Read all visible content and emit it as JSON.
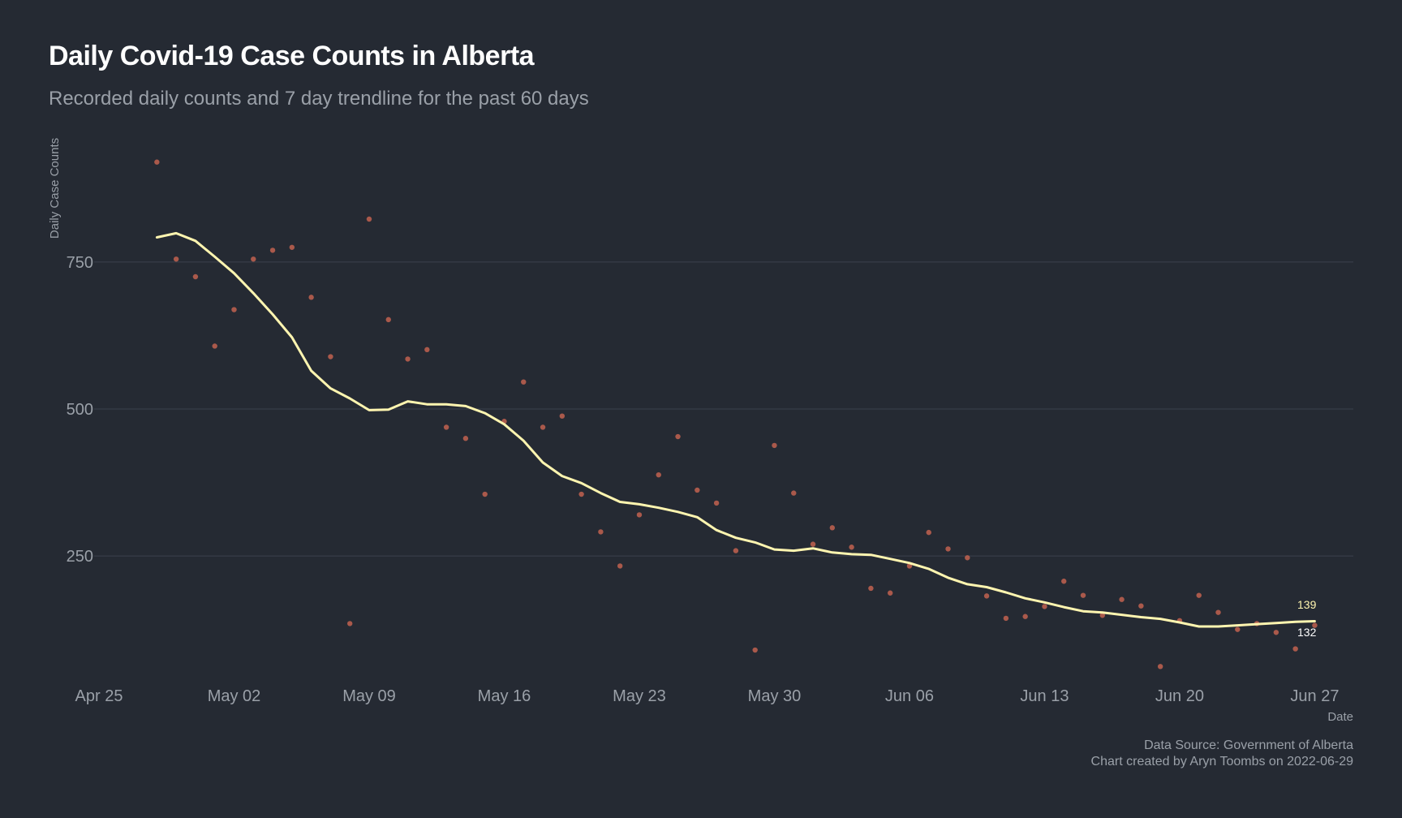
{
  "title": "Daily Covid-19 Case Counts in Alberta",
  "subtitle": "Recorded daily counts and 7 day trendline for the past 60 days",
  "caption": {
    "source": "Data Source: Government of Alberta",
    "credit": "Chart created by Aryn Toombs on 2022-06-29"
  },
  "colors": {
    "background": "#252a33",
    "trend_line": "#fff5b0",
    "points": "#c26150",
    "grid": "#3c424d",
    "muted_text": "#9aa0a8"
  },
  "chart_data": {
    "type": "scatter",
    "title": "Daily Covid-19 Case Counts in Alberta",
    "subtitle": "Recorded daily counts and 7 day trendline for the past 60 days",
    "xlabel": "Date",
    "ylabel": "Daily Case Counts",
    "xlim": [
      "2022-04-25",
      "2022-06-29"
    ],
    "ylim": [
      50,
      950
    ],
    "x_ticks": [
      "2022-04-25",
      "2022-05-02",
      "2022-05-09",
      "2022-05-16",
      "2022-05-23",
      "2022-05-30",
      "2022-06-06",
      "2022-06-13",
      "2022-06-20",
      "2022-06-27"
    ],
    "x_tick_labels": [
      "Apr 25",
      "May 02",
      "May 09",
      "May 16",
      "May 23",
      "May 30",
      "Jun 06",
      "Jun 13",
      "Jun 20",
      "Jun 27"
    ],
    "y_ticks": [
      250,
      500,
      750
    ],
    "grid": "horizontal",
    "series": [
      {
        "kind": "points",
        "x": [
          "2022-04-28",
          "2022-04-29",
          "2022-04-30",
          "2022-05-01",
          "2022-05-02",
          "2022-05-03",
          "2022-05-04",
          "2022-05-05",
          "2022-05-06",
          "2022-05-07",
          "2022-05-08",
          "2022-05-09",
          "2022-05-10",
          "2022-05-11",
          "2022-05-12",
          "2022-05-13",
          "2022-05-14",
          "2022-05-15",
          "2022-05-16",
          "2022-05-17",
          "2022-05-18",
          "2022-05-19",
          "2022-05-20",
          "2022-05-21",
          "2022-05-22",
          "2022-05-23",
          "2022-05-24",
          "2022-05-25",
          "2022-05-26",
          "2022-05-27",
          "2022-05-28",
          "2022-05-29",
          "2022-05-30",
          "2022-05-31",
          "2022-06-01",
          "2022-06-02",
          "2022-06-03",
          "2022-06-04",
          "2022-06-05",
          "2022-06-06",
          "2022-06-07",
          "2022-06-08",
          "2022-06-09",
          "2022-06-10",
          "2022-06-11",
          "2022-06-12",
          "2022-06-13",
          "2022-06-14",
          "2022-06-15",
          "2022-06-16",
          "2022-06-17",
          "2022-06-18",
          "2022-06-19",
          "2022-06-20",
          "2022-06-21",
          "2022-06-22",
          "2022-06-23",
          "2022-06-24",
          "2022-06-25",
          "2022-06-26",
          "2022-06-27"
        ],
        "y": [
          920,
          755,
          725,
          607,
          669,
          755,
          770,
          775,
          690,
          589,
          135,
          823,
          652,
          585,
          601,
          469,
          450,
          355,
          479,
          546,
          469,
          488,
          355,
          291,
          233,
          320,
          388,
          453,
          362,
          340,
          259,
          90,
          438,
          357,
          270,
          298,
          265,
          195,
          187,
          233,
          290,
          262,
          247,
          182,
          144,
          147,
          164,
          207,
          183,
          149,
          176,
          165,
          62,
          140,
          183,
          154,
          125,
          135,
          120,
          92,
          132
        ]
      },
      {
        "kind": "line",
        "x": [
          "2022-04-28",
          "2022-04-29",
          "2022-04-30",
          "2022-05-01",
          "2022-05-02",
          "2022-05-03",
          "2022-05-04",
          "2022-05-05",
          "2022-05-06",
          "2022-05-07",
          "2022-05-08",
          "2022-05-09",
          "2022-05-10",
          "2022-05-11",
          "2022-05-12",
          "2022-05-13",
          "2022-05-14",
          "2022-05-15",
          "2022-05-16",
          "2022-05-17",
          "2022-05-18",
          "2022-05-19",
          "2022-05-20",
          "2022-05-21",
          "2022-05-22",
          "2022-05-23",
          "2022-05-24",
          "2022-05-25",
          "2022-05-26",
          "2022-05-27",
          "2022-05-28",
          "2022-05-29",
          "2022-05-30",
          "2022-05-31",
          "2022-06-01",
          "2022-06-02",
          "2022-06-03",
          "2022-06-04",
          "2022-06-05",
          "2022-06-06",
          "2022-06-07",
          "2022-06-08",
          "2022-06-09",
          "2022-06-10",
          "2022-06-11",
          "2022-06-12",
          "2022-06-13",
          "2022-06-14",
          "2022-06-15",
          "2022-06-16",
          "2022-06-17",
          "2022-06-18",
          "2022-06-19",
          "2022-06-20",
          "2022-06-21",
          "2022-06-22",
          "2022-06-23",
          "2022-06-24",
          "2022-06-25",
          "2022-06-26",
          "2022-06-27"
        ],
        "y": [
          792,
          799,
          786,
          759,
          731,
          697,
          661,
          622,
          565,
          535,
          518,
          498,
          499,
          513,
          508,
          508,
          505,
          493,
          474,
          446,
          409,
          386,
          374,
          357,
          342,
          338,
          332,
          325,
          316,
          294,
          281,
          273,
          261,
          259,
          263,
          256,
          253,
          252,
          245,
          238,
          228,
          213,
          202,
          197,
          188,
          178,
          171,
          163,
          156,
          154,
          150,
          146,
          143,
          137,
          130,
          130,
          132,
          134,
          136,
          138,
          139
        ]
      }
    ],
    "end_labels": [
      "139",
      "132"
    ]
  }
}
